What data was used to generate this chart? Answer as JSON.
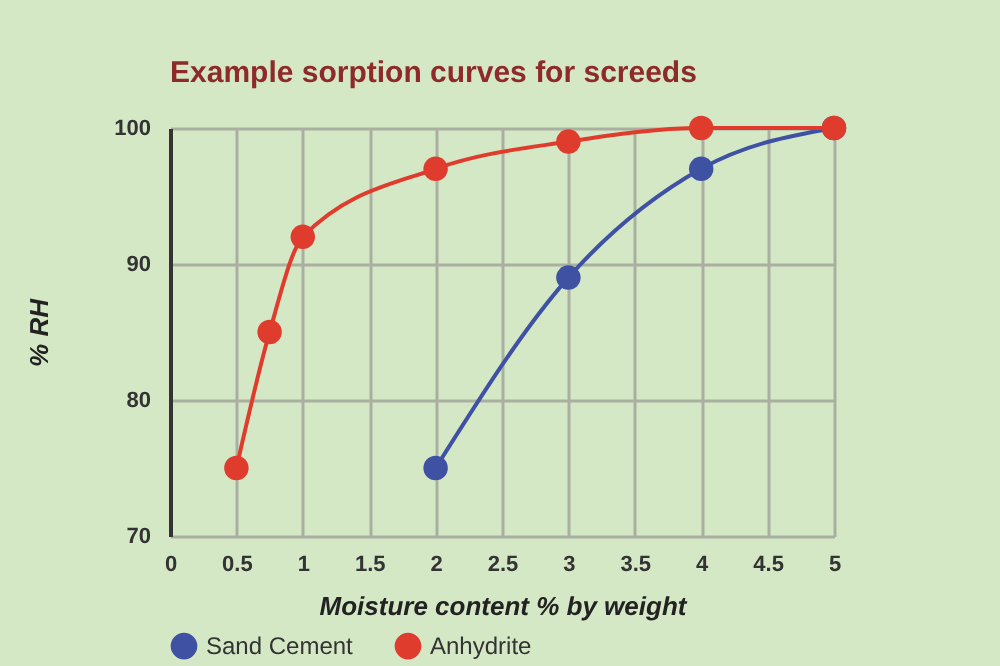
{
  "chart_data": {
    "type": "line",
    "title": "Example sorption curves for screeds",
    "xlabel": "Moisture content % by weight",
    "ylabel": "% RH",
    "xlim": [
      0,
      5
    ],
    "xticks": [
      0,
      0.5,
      1,
      1.5,
      2,
      2.5,
      3,
      3.5,
      4,
      4.5,
      5
    ],
    "ylim": [
      70,
      100
    ],
    "yticks": [
      70,
      80,
      90,
      100
    ],
    "grid": true,
    "legend": "bottom",
    "marker": "circle",
    "line_style": "solid",
    "series": [
      {
        "name": "Sand Cement",
        "color": "#3f51a3",
        "x": [
          2,
          3,
          4,
          5
        ],
        "values": [
          75,
          89,
          97,
          100
        ]
      },
      {
        "name": "Anhydrite",
        "color": "#e03c2e",
        "x": [
          0.5,
          0.75,
          1,
          2,
          3,
          4,
          5
        ],
        "values": [
          75,
          85,
          92,
          97,
          99,
          100,
          100
        ]
      }
    ]
  }
}
